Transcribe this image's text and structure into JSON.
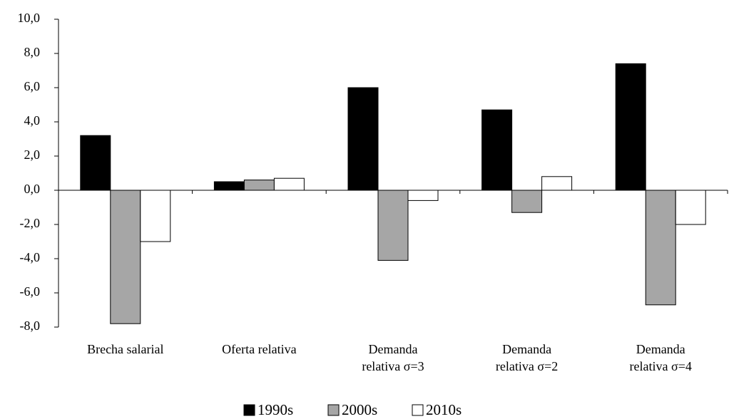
{
  "chart_data": {
    "type": "bar",
    "categories": [
      "Brecha salarial",
      "Oferta relativa",
      "Demanda\nrelativa σ=3",
      "Demanda\nrelativa σ=2",
      "Demanda\nrelativa σ=4"
    ],
    "series": [
      {
        "name": "1990s",
        "color": "#000000",
        "values": [
          3.2,
          0.5,
          6.0,
          4.7,
          7.4
        ]
      },
      {
        "name": "2000s",
        "color": "#a6a6a6",
        "values": [
          -7.8,
          0.6,
          -4.1,
          -1.3,
          -6.7
        ]
      },
      {
        "name": "2010s",
        "color": "#ffffff",
        "values": [
          -3.0,
          0.7,
          -0.6,
          0.8,
          -2.0
        ]
      }
    ],
    "ylim": [
      -8,
      10
    ],
    "yticks": [
      {
        "value": -8,
        "label": "-8,0"
      },
      {
        "value": -6,
        "label": "-6,0"
      },
      {
        "value": -4,
        "label": "-4,0"
      },
      {
        "value": -2,
        "label": "-2,0"
      },
      {
        "value": 0,
        "label": "0,0"
      },
      {
        "value": 2,
        "label": "2,0"
      },
      {
        "value": 4,
        "label": "4,0"
      },
      {
        "value": 6,
        "label": "6,0"
      },
      {
        "value": 8,
        "label": "8,0"
      },
      {
        "value": 10,
        "label": "10,0"
      }
    ],
    "grid": false,
    "legend": "bottom"
  }
}
